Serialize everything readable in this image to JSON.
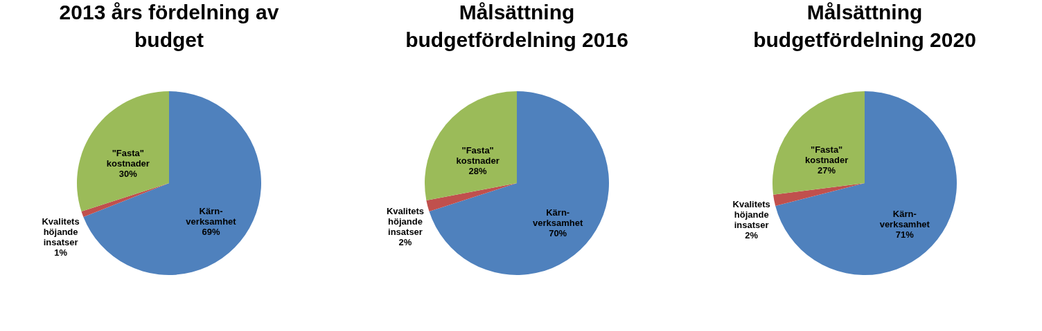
{
  "chart_data": [
    {
      "type": "pie",
      "title": "2013 års fördelning av\nbudget",
      "categories": [
        "Kärn-\nverksamhet",
        "Kvalitets\nhöjande\ninsatser",
        "\"Fasta\"\nkostnader"
      ],
      "values": [
        69,
        1,
        30
      ],
      "value_labels": [
        "69%",
        "1%",
        "30%"
      ],
      "colors": [
        "#4f81bd",
        "#c0504d",
        "#9bbb59"
      ]
    },
    {
      "type": "pie",
      "title": "Målsättning\nbudgetfördelning 2016",
      "categories": [
        "Kärn-\nverksamhet",
        "Kvalitets\nhöjande\ninsatser",
        "\"Fasta\"\nkostnader"
      ],
      "values": [
        70,
        2,
        28
      ],
      "value_labels": [
        "70%",
        "2%",
        "28%"
      ],
      "colors": [
        "#4f81bd",
        "#c0504d",
        "#9bbb59"
      ]
    },
    {
      "type": "pie",
      "title": "Målsättning\nbudgetfördelning 2020",
      "categories": [
        "Kärn-\nverksamhet",
        "Kvalitets\nhöjande\ninsatser",
        "\"Fasta\"\nkostnader"
      ],
      "values": [
        71,
        2,
        27
      ],
      "value_labels": [
        "71%",
        "2%",
        "27%"
      ],
      "colors": [
        "#4f81bd",
        "#c0504d",
        "#9bbb59"
      ]
    }
  ]
}
